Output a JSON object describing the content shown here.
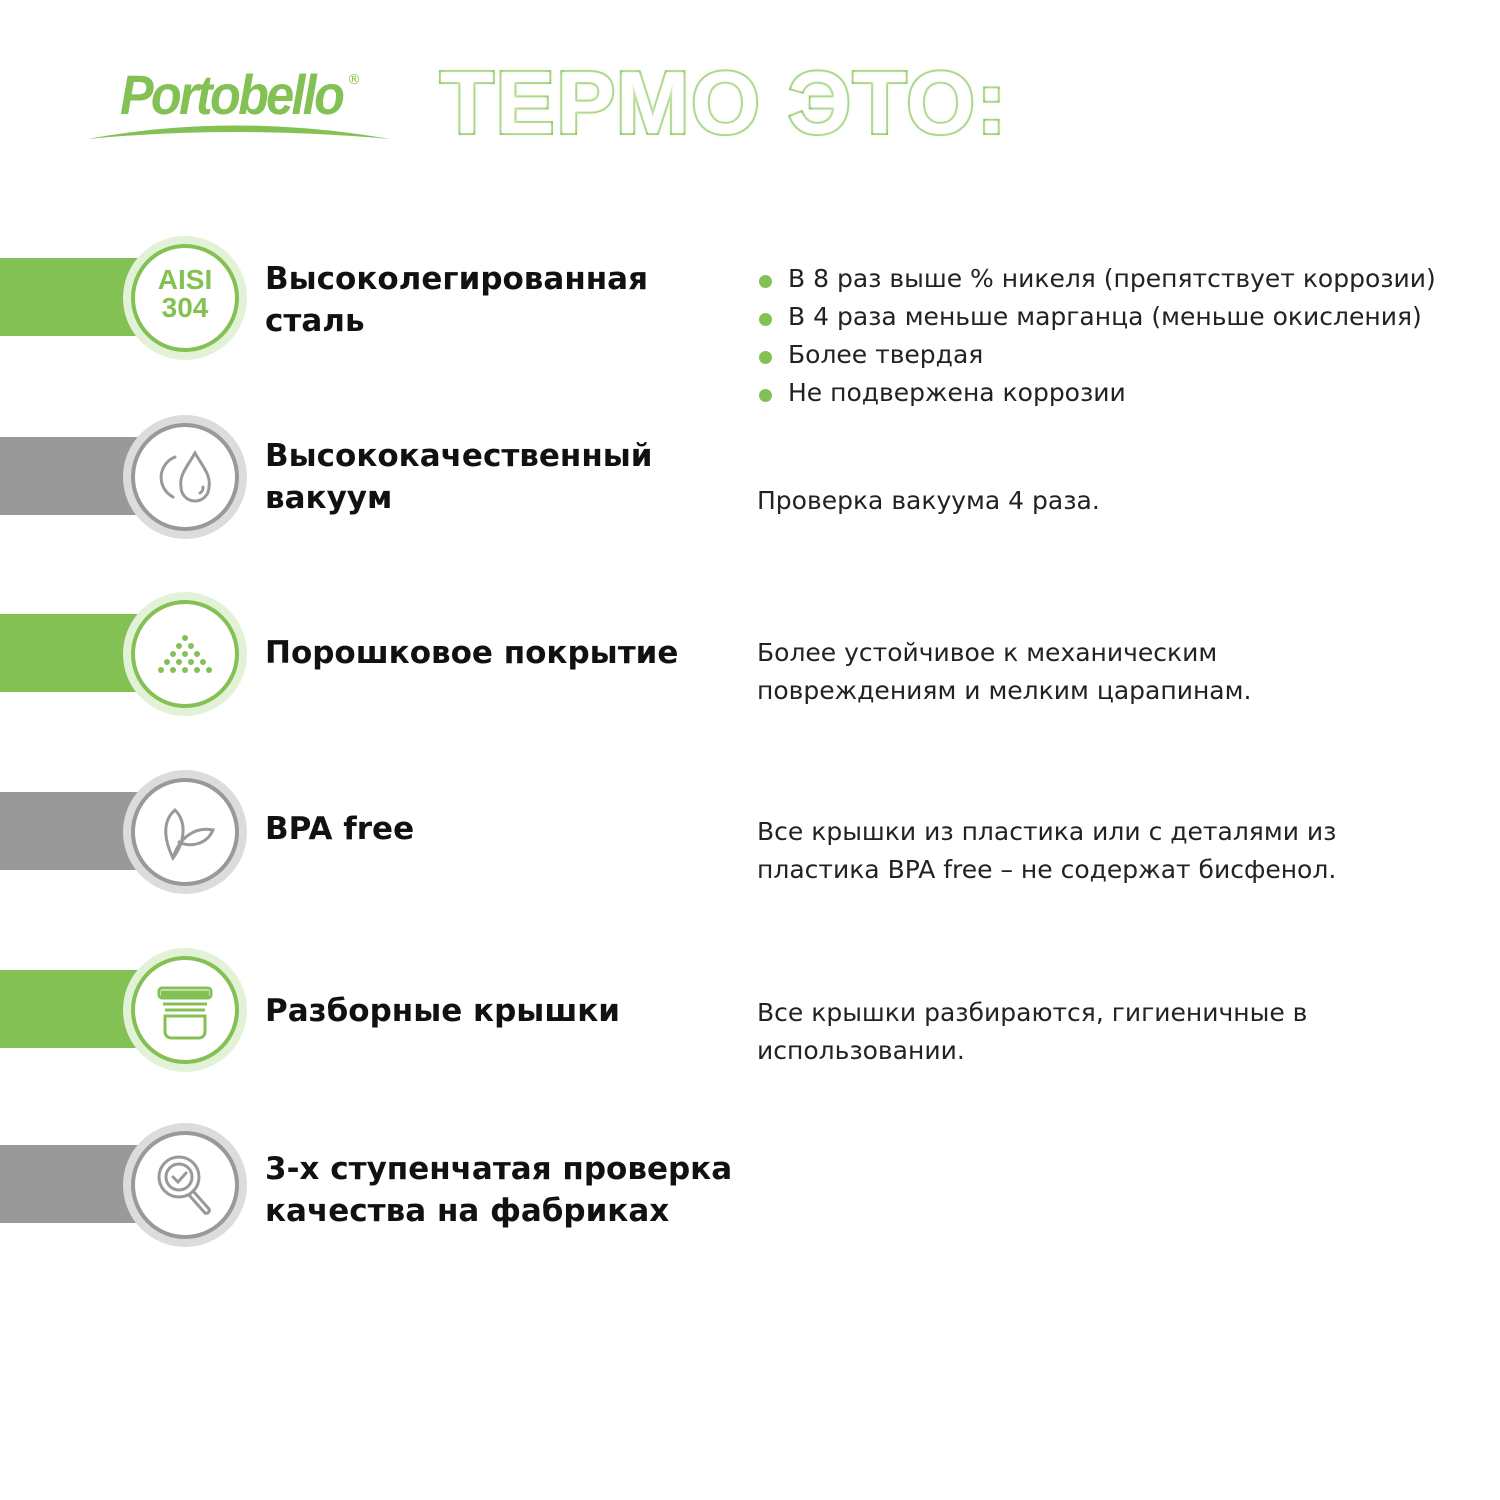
{
  "logo": {
    "text": "Portobello",
    "registered": "®"
  },
  "headline": "ТЕРМО ЭТО:",
  "colors": {
    "green": "#84c155",
    "gray": "#999999"
  },
  "features": [
    {
      "title": "Высоколегированная сталь",
      "icon": "aisi-304-badge",
      "icon_text": "AISI 304",
      "bullets": [
        "В 8 раз выше % никеля (препятствует коррозии)",
        "В 4 раза меньше марганца (меньше окисления)",
        "Более твердая",
        "Не подвержена коррозии"
      ]
    },
    {
      "title": "Высококачественный вакуум",
      "icon": "water-drop-icon",
      "description": "Проверка вакуума 4 раза."
    },
    {
      "title": "Порошковое покрытие",
      "icon": "powder-dots-icon",
      "description": "Более устойчивое к механическим повреждениям и мелким царапинам."
    },
    {
      "title": "BPA free",
      "icon": "leaf-icon",
      "description": "Все крышки из пластика или с деталями из пластика BPA free – не содержат бисфенол."
    },
    {
      "title": "Разборные крышки",
      "icon": "lid-icon",
      "description": "Все крышки разбираются, гигиеничные в использовании."
    },
    {
      "title": "3-х ступенчатая проверка качества на фабриках",
      "icon": "magnifier-check-icon"
    }
  ]
}
